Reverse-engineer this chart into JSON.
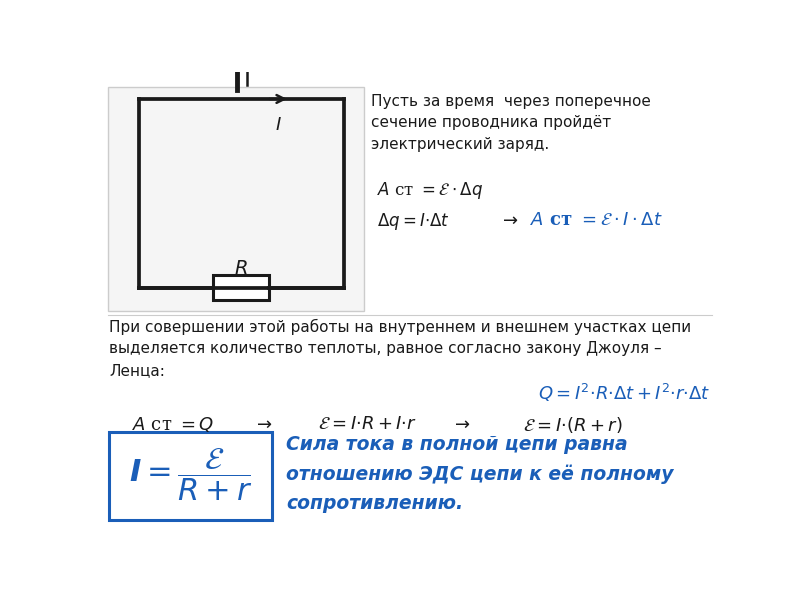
{
  "bg_color": "#ffffff",
  "text_color_black": "#1a1a1a",
  "text_color_blue": "#1a5eb8",
  "circuit_line_color": "#1a1a1a",
  "para1": "Пусть за время  через поперечное\nсечение проводника пройдёт\nэлектрический заряд.",
  "para2": "При совершении этой работы на внутреннем и внешнем участках цепи\nвыделяется количество теплоты, равное согласно закону Джоуля –\nЛенца:",
  "description": "Сила тока в полной цепи равна\nотношению ЭДС цепи к её полному\nсопротивлению."
}
